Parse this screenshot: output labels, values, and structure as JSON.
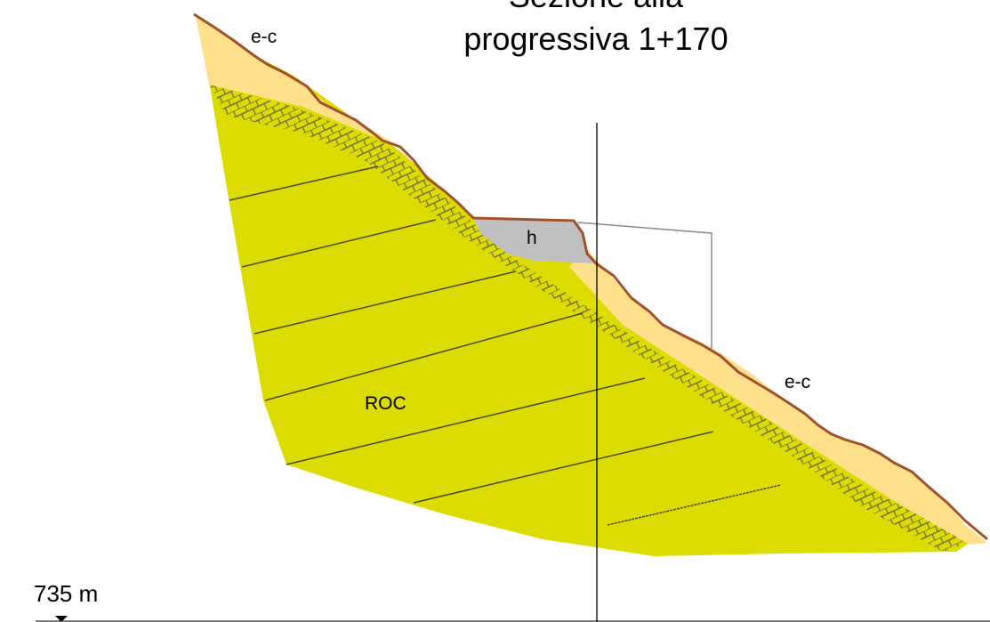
{
  "title": {
    "line1": "Sezione alla",
    "line2": "progressiva 1+170"
  },
  "labels": {
    "ec_top": "e-c",
    "ec_right": "e-c",
    "h": "h",
    "roc": "ROC",
    "elevation": "735 m"
  },
  "colors": {
    "rock": "#dcdc00",
    "colluvium": "#ffe08a",
    "fill_h": "#c0c0c0",
    "ground_line": "#a0522d",
    "hatch": "#6b6b3a",
    "bedding": "#4a4a20"
  }
}
